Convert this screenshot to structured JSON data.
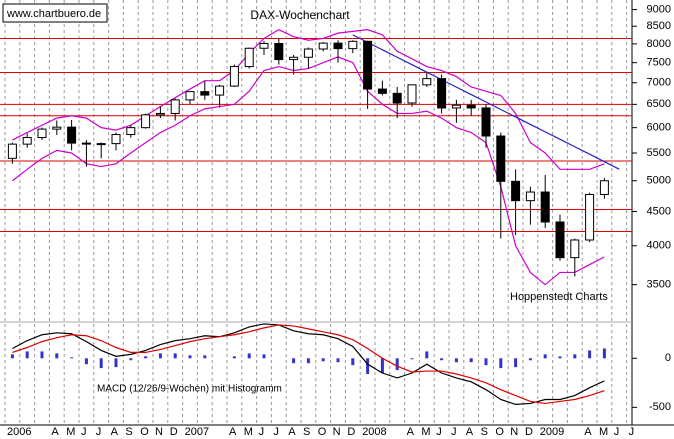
{
  "chart_data": [
    {
      "type": "candlestick",
      "title": "DAX-Wochenchart",
      "source": "www.chartbuero.de",
      "annotation": "Hoppenstedt Charts",
      "log_scale": true,
      "ylim": [
        3100,
        9300
      ],
      "yticks": [
        9000,
        8500,
        8000,
        7500,
        7000,
        6500,
        6000,
        5500,
        5000,
        4500,
        4000,
        3500
      ],
      "categories": [
        "2006",
        null,
        null,
        "A",
        "M",
        "J",
        "J",
        "A",
        "S",
        "O",
        "N",
        "D",
        "2007",
        null,
        null,
        "A",
        "M",
        "J",
        "J",
        "A",
        "S",
        "O",
        "N",
        "D",
        "2008",
        null,
        null,
        "A",
        "M",
        "J",
        "J",
        "A",
        "S",
        "O",
        "N",
        "D",
        "2009",
        null,
        null,
        "A",
        "M",
        "J",
        "J"
      ],
      "open": [
        5400,
        5670,
        5800,
        5970,
        6010,
        5690,
        5680,
        5680,
        5860,
        6000,
        6270,
        6300,
        6600,
        6790,
        6710,
        6920,
        7400,
        7880,
        8010,
        7580,
        7640,
        7860,
        8020,
        7870,
        8070,
        6850,
        6750,
        6530,
        6950,
        7100,
        6420,
        6480,
        6420,
        5830,
        4990,
        4670,
        4810,
        4340,
        3840,
        4080,
        4770,
        null,
        null
      ],
      "high": [
        5700,
        5880,
        6000,
        6150,
        6160,
        5750,
        5700,
        5900,
        6050,
        6300,
        6450,
        6630,
        6800,
        7040,
        6950,
        7450,
        7900,
        8080,
        8150,
        7700,
        7900,
        8050,
        8100,
        8100,
        8090,
        7050,
        6900,
        6950,
        7250,
        7200,
        6600,
        6600,
        6500,
        5900,
        5200,
        4900,
        5100,
        4450,
        4100,
        4800,
        5050,
        null,
        null
      ],
      "low": [
        5300,
        5600,
        5750,
        5850,
        5550,
        5250,
        5400,
        5550,
        5800,
        5980,
        6200,
        6150,
        6500,
        6600,
        6430,
        6900,
        7350,
        7700,
        7450,
        7200,
        7350,
        7800,
        7500,
        7750,
        6400,
        6700,
        6200,
        6450,
        6900,
        6300,
        6100,
        6250,
        5600,
        4100,
        4150,
        4300,
        4250,
        3800,
        3600,
        4050,
        4700,
        null,
        null
      ],
      "close": [
        5670,
        5800,
        5970,
        6010,
        5690,
        5680,
        5680,
        5860,
        6000,
        6270,
        6300,
        6600,
        6790,
        6710,
        6920,
        7400,
        7880,
        8010,
        7580,
        7640,
        7860,
        8020,
        7870,
        8070,
        6850,
        6750,
        6530,
        6950,
        7100,
        6420,
        6480,
        6420,
        5830,
        4990,
        4670,
        4810,
        4340,
        3840,
        4080,
        4770,
        5000,
        null,
        null
      ],
      "series": [
        {
          "color": "#cc00cc",
          "values": [
            5750,
            5900,
            6050,
            6200,
            6250,
            6200,
            6000,
            5950,
            6050,
            6250,
            6450,
            6650,
            6850,
            7050,
            7050,
            7300,
            7750,
            8150,
            8400,
            8200,
            8100,
            8150,
            8300,
            8350,
            8400,
            8250,
            7800,
            7600,
            7400,
            7300,
            7150,
            6900,
            6800,
            6700,
            6300,
            5700,
            5500,
            5200,
            5200,
            5200,
            5300,
            null,
            null
          ]
        },
        {
          "color": "#cc00cc",
          "values": [
            5000,
            5200,
            5400,
            5550,
            5500,
            5300,
            5250,
            5300,
            5500,
            5700,
            5900,
            6050,
            6250,
            6400,
            6450,
            6500,
            6800,
            7300,
            7400,
            7300,
            7350,
            7500,
            7650,
            7500,
            6800,
            6500,
            6300,
            6300,
            6350,
            6200,
            6000,
            5900,
            5700,
            4900,
            4000,
            3650,
            3500,
            3650,
            3650,
            3750,
            3850,
            null,
            null
          ]
        }
      ],
      "levels": [
        8150,
        7250,
        6500,
        6250,
        5350,
        4530,
        4200
      ],
      "level_color": "#dd0000",
      "trendline": {
        "color": "#2222cc",
        "values": [
          null,
          null,
          null,
          null,
          null,
          null,
          null,
          null,
          null,
          null,
          null,
          null,
          null,
          null,
          null,
          null,
          null,
          null,
          null,
          null,
          null,
          null,
          null,
          8250,
          8041,
          7838,
          7640,
          7447,
          7259,
          7075,
          6896,
          6722,
          6552,
          6386,
          6225,
          6067,
          5914,
          5764,
          5619,
          5477,
          5338,
          5203,
          null
        ]
      }
    },
    {
      "type": "macd",
      "title": "MACD (12/26/9-Wochen) mit Histogramm",
      "ylim": [
        -680,
        370
      ],
      "yticks": [
        0,
        -500
      ],
      "series": [
        {
          "color": "#000000",
          "values": [
            100,
            180,
            240,
            260,
            250,
            170,
            80,
            20,
            40,
            80,
            140,
            180,
            200,
            230,
            220,
            260,
            320,
            350,
            340,
            280,
            250,
            240,
            200,
            120,
            -60,
            -150,
            -200,
            -150,
            -60,
            -150,
            -200,
            -240,
            -320,
            -420,
            -470,
            -460,
            -420,
            -420,
            -380,
            -300,
            -230,
            null,
            null
          ]
        },
        {
          "color": "#dd0000",
          "values": [
            60,
            110,
            170,
            210,
            240,
            230,
            180,
            110,
            60,
            60,
            90,
            130,
            170,
            200,
            220,
            240,
            270,
            310,
            340,
            330,
            300,
            270,
            240,
            190,
            100,
            0,
            -80,
            -140,
            -130,
            -130,
            -160,
            -200,
            -250,
            -320,
            -380,
            -440,
            -460,
            -440,
            -420,
            -380,
            -330,
            null,
            null
          ]
        }
      ],
      "histogram": {
        "color": "#3333cc",
        "values": [
          40,
          70,
          70,
          50,
          10,
          -60,
          -100,
          -90,
          -20,
          20,
          50,
          50,
          30,
          30,
          0,
          20,
          50,
          40,
          0,
          -50,
          -50,
          -30,
          -40,
          -70,
          -160,
          -150,
          -120,
          -10,
          70,
          -20,
          -40,
          -40,
          -70,
          -100,
          -90,
          -20,
          40,
          20,
          40,
          80,
          100,
          null,
          null
        ]
      }
    }
  ]
}
